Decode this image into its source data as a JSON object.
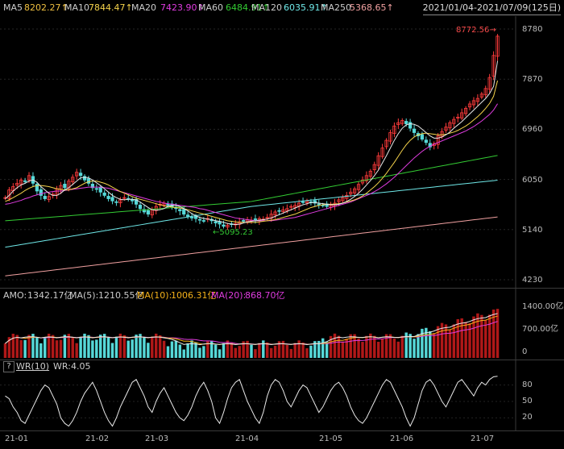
{
  "indicators": {
    "ma5": {
      "label": "MA5",
      "value": "8202.27↑",
      "color": "#e8e8e8"
    },
    "ma10": {
      "label": "MA10",
      "value": "7844.47↑",
      "color": "#f5d34b"
    },
    "ma20": {
      "label": "MA20",
      "value": "7423.90↑",
      "color": "#e03ce0"
    },
    "ma60": {
      "label": "MA60",
      "value": "6484.91↑",
      "color": "#33cc33"
    },
    "ma120": {
      "label": "MA120",
      "value": "6035.91↑",
      "color": "#6fe8e8"
    },
    "ma250": {
      "label": "MA250",
      "value": "5368.65↑",
      "color": "#f0a0a0"
    }
  },
  "date_range": "2021/01/04-2021/07/09(125日)",
  "price_axis": [
    "8780",
    "7870",
    "6960",
    "6050",
    "5140",
    "4230"
  ],
  "annotations": {
    "high": "8772.56",
    "low": "5095.23"
  },
  "amount_panel": {
    "amo_label": "AMO:",
    "amo_value": "1342.17亿",
    "ma5_label": "MA(5):",
    "ma5_value": "1210.55亿",
    "ma10_label": "MA(10):",
    "ma10_value": "1006.31亿",
    "ma20_label": "MA(20):",
    "ma20_value": "868.70亿",
    "axis": [
      "1400.00亿",
      "700.00亿",
      "0"
    ]
  },
  "wr_panel": {
    "help": "?",
    "name": "WR(10)",
    "wr_label": "WR:",
    "wr_value": "4.05",
    "axis": [
      "80",
      "50",
      "20"
    ]
  },
  "x_axis": [
    "21-01",
    "21-02",
    "21-03",
    "21-04",
    "21-05",
    "21-06",
    "21-07"
  ],
  "colors": {
    "up": "#ff3b3b",
    "down": "#56d8d8",
    "text_red": "#ff4d4d",
    "text_green": "#33cc33"
  },
  "chart_data": {
    "type": "candlestick",
    "title": "",
    "ylim": [
      4230,
      8780
    ],
    "close_series": [
      5720,
      5860,
      5920,
      5980,
      6040,
      6010,
      6120,
      5980,
      5840,
      5760,
      5700,
      5740,
      5780,
      5880,
      5940,
      5900,
      6020,
      6090,
      6180,
      6120,
      6040,
      5980,
      5900,
      5880,
      5820,
      5760,
      5700,
      5660,
      5640,
      5680,
      5720,
      5700,
      5660,
      5600,
      5520,
      5460,
      5420,
      5500,
      5560,
      5600,
      5620,
      5580,
      5560,
      5520,
      5480,
      5420,
      5380,
      5360,
      5340,
      5320,
      5300,
      5340,
      5300,
      5260,
      5240,
      5200,
      5220,
      5240,
      5250,
      5280,
      5300,
      5320,
      5310,
      5320,
      5340,
      5330,
      5360,
      5420,
      5460,
      5480,
      5500,
      5520,
      5560,
      5580,
      5620,
      5640,
      5660,
      5640,
      5620,
      5600,
      5580,
      5560,
      5580,
      5620,
      5680,
      5720,
      5760,
      5820,
      5880,
      5960,
      6040,
      6120,
      6200,
      6320,
      6480,
      6620,
      6760,
      6900,
      7020,
      7080,
      7120,
      7060,
      6980,
      6900,
      6840,
      6780,
      6720,
      6640,
      6700,
      6840,
      6920,
      7000,
      7080,
      7140,
      7180,
      7260,
      7340,
      7420,
      7480,
      7520,
      7600,
      7700,
      7900,
      8300,
      8650
    ],
    "ma5": [
      5700,
      5760,
      5840,
      5900,
      5950,
      5980,
      6020,
      6040,
      6000,
      5920,
      5860,
      5800,
      5760,
      5760,
      5800,
      5860,
      5900,
      5960,
      6020,
      6080,
      6090,
      6080,
      6040,
      5990,
      5940,
      5880,
      5820,
      5760,
      5720,
      5690,
      5680,
      5690,
      5690,
      5680,
      5640,
      5590,
      5540,
      5500,
      5490,
      5500,
      5520,
      5560,
      5580,
      5580,
      5560,
      5520,
      5480,
      5430,
      5390,
      5360,
      5340,
      5330,
      5320,
      5300,
      5290,
      5270,
      5250,
      5240,
      5230,
      5240,
      5260,
      5280,
      5290,
      5300,
      5310,
      5320,
      5330,
      5350,
      5380,
      5410,
      5440,
      5470,
      5500,
      5530,
      5560,
      5590,
      5610,
      5630,
      5630,
      5620,
      5610,
      5600,
      5590,
      5590,
      5600,
      5620,
      5650,
      5690,
      5740,
      5800,
      5870,
      5950,
      6030,
      6120,
      6220,
      6350,
      6480,
      6620,
      6760,
      6880,
      6980,
      7040,
      7060,
      7050,
      7020,
      6960,
      6900,
      6840,
      6800,
      6800,
      6820,
      6860,
      6910,
      6980,
      7040,
      7100,
      7170,
      7240,
      7310,
      7380,
      7450,
      7520,
      7610,
      7740,
      8202
    ],
    "ma10": [
      5650,
      5680,
      5720,
      5760,
      5800,
      5850,
      5890,
      5920,
      5940,
      5940,
      5930,
      5920,
      5900,
      5880,
      5870,
      5860,
      5860,
      5880,
      5900,
      5940,
      5980,
      6010,
      6020,
      6020,
      6000,
      5980,
      5950,
      5910,
      5870,
      5830,
      5800,
      5770,
      5740,
      5710,
      5690,
      5670,
      5650,
      5630,
      5610,
      5590,
      5570,
      5560,
      5550,
      5540,
      5530,
      5520,
      5500,
      5480,
      5460,
      5440,
      5420,
      5400,
      5380,
      5360,
      5340,
      5320,
      5300,
      5290,
      5280,
      5270,
      5270,
      5270,
      5270,
      5270,
      5280,
      5290,
      5300,
      5310,
      5320,
      5340,
      5360,
      5380,
      5400,
      5420,
      5450,
      5480,
      5510,
      5540,
      5560,
      5580,
      5590,
      5600,
      5600,
      5600,
      5610,
      5620,
      5640,
      5660,
      5680,
      5710,
      5750,
      5800,
      5860,
      5920,
      5990,
      6070,
      6160,
      6260,
      6360,
      6470,
      6580,
      6680,
      6760,
      6820,
      6860,
      6880,
      6890,
      6880,
      6870,
      6860,
      6860,
      6870,
      6890,
      6910,
      6940,
      6980,
      7020,
      7070,
      7130,
      7190,
      7260,
      7340,
      7430,
      7560,
      7844
    ],
    "ma20": [
      5600,
      5610,
      5630,
      5650,
      5670,
      5700,
      5720,
      5750,
      5770,
      5790,
      5810,
      5820,
      5830,
      5840,
      5840,
      5850,
      5860,
      5870,
      5880,
      5890,
      5900,
      5910,
      5910,
      5910,
      5910,
      5900,
      5890,
      5870,
      5850,
      5830,
      5810,
      5790,
      5770,
      5750,
      5730,
      5710,
      5690,
      5670,
      5650,
      5640,
      5620,
      5610,
      5600,
      5590,
      5580,
      5570,
      5560,
      5550,
      5540,
      5520,
      5510,
      5490,
      5470,
      5450,
      5430,
      5410,
      5390,
      5370,
      5350,
      5340,
      5330,
      5320,
      5310,
      5300,
      5300,
      5300,
      5300,
      5300,
      5310,
      5320,
      5330,
      5340,
      5350,
      5360,
      5380,
      5400,
      5420,
      5440,
      5460,
      5480,
      5500,
      5520,
      5540,
      5560,
      5580,
      5600,
      5620,
      5640,
      5670,
      5700,
      5730,
      5760,
      5790,
      5830,
      5870,
      5920,
      5970,
      6030,
      6090,
      6160,
      6230,
      6300,
      6370,
      6440,
      6500,
      6560,
      6610,
      6650,
      6690,
      6720,
      6750,
      6780,
      6810,
      6840,
      6870,
      6900,
      6930,
      6970,
      7010,
      7060,
      7110,
      7170,
      7230,
      7310,
      7424
    ],
    "ma60_start": 5300,
    "ma60_mid": 5650,
    "ma60_end": 6485,
    "ma120_start": 4820,
    "ma120_mid": 5560,
    "ma120_end": 6036,
    "ma250_start": 4300,
    "ma250_end": 5369,
    "wr": [
      60,
      55,
      40,
      30,
      15,
      10,
      25,
      40,
      55,
      70,
      80,
      75,
      60,
      45,
      20,
      10,
      5,
      15,
      30,
      50,
      65,
      75,
      85,
      70,
      50,
      30,
      15,
      5,
      20,
      40,
      55,
      70,
      85,
      90,
      75,
      60,
      40,
      30,
      50,
      65,
      75,
      60,
      45,
      30,
      20,
      15,
      25,
      40,
      60,
      75,
      85,
      70,
      50,
      20,
      10,
      30,
      55,
      75,
      85,
      90,
      70,
      50,
      35,
      20,
      10,
      30,
      60,
      80,
      90,
      85,
      70,
      50,
      40,
      55,
      70,
      80,
      75,
      60,
      45,
      30,
      40,
      55,
      70,
      80,
      85,
      75,
      60,
      40,
      25,
      15,
      10,
      20,
      35,
      50,
      65,
      80,
      90,
      85,
      70,
      55,
      40,
      20,
      5,
      20,
      45,
      70,
      85,
      90,
      80,
      65,
      50,
      40,
      55,
      70,
      85,
      90,
      80,
      70,
      60,
      75,
      85,
      80,
      90,
      95,
      96
    ]
  }
}
